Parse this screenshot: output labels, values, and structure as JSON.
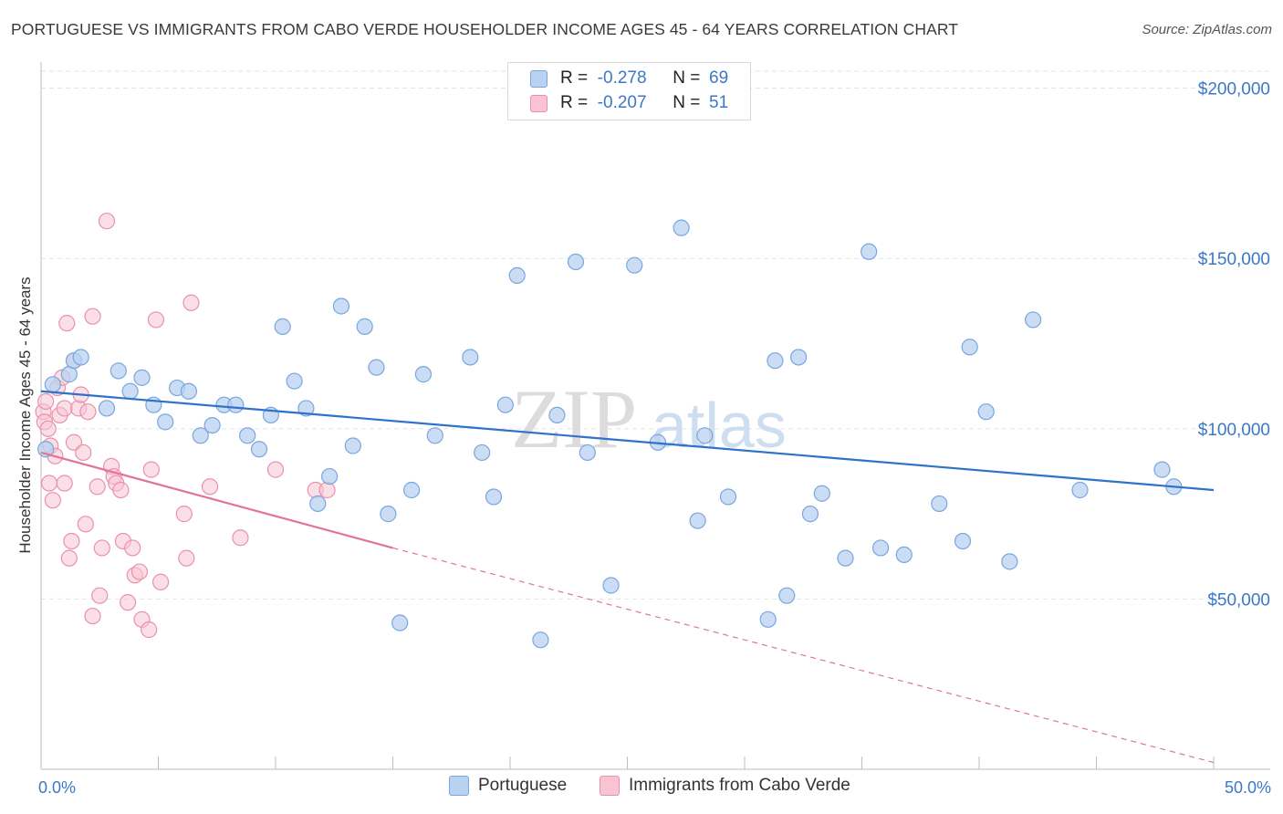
{
  "title": "PORTUGUESE VS IMMIGRANTS FROM CABO VERDE HOUSEHOLDER INCOME AGES 45 - 64 YEARS CORRELATION CHART",
  "source": "Source: ZipAtlas.com",
  "watermark": {
    "zip": "ZIP",
    "atlas": "atlas"
  },
  "legend": {
    "r_label": "R =",
    "n_label": "N =",
    "series": [
      {
        "r": "-0.278",
        "n": "69"
      },
      {
        "r": "-0.207",
        "n": "51"
      }
    ]
  },
  "bottom_legend": [
    "Portuguese",
    "Immigrants from Cabo Verde"
  ],
  "colors": {
    "blue_fill": "#b8d2f2",
    "blue_stroke": "#7aa6dd",
    "blue_line": "#2f72c9",
    "pink_fill": "#f8c4d4",
    "pink_stroke": "#ea90ad",
    "pink_line": "#e2739b",
    "axis_text": "#3b78c8"
  },
  "chart_data": {
    "type": "scatter",
    "xlabel": "",
    "ylabel": "Householder Income Ages 45 - 64 years",
    "xlim": [
      0,
      50
    ],
    "ylim": [
      0,
      205000
    ],
    "x_tick_labels": [
      "0.0%",
      "50.0%"
    ],
    "y_ticks": [
      50000,
      100000,
      150000,
      200000
    ],
    "y_tick_labels": [
      "$50,000",
      "$100,000",
      "$150,000",
      "$200,000"
    ],
    "grid": "horizontal dashed",
    "series": [
      {
        "name": "Portuguese",
        "r": -0.278,
        "n": 69,
        "trend": {
          "x": [
            0,
            50
          ],
          "y": [
            111000,
            82000
          ],
          "style": "solid"
        },
        "points": [
          [
            0.2,
            94000
          ],
          [
            1.2,
            116000
          ],
          [
            1.4,
            120000
          ],
          [
            1.7,
            121000
          ],
          [
            2.8,
            106000
          ],
          [
            3.3,
            117000
          ],
          [
            3.8,
            111000
          ],
          [
            4.3,
            115000
          ],
          [
            4.8,
            107000
          ],
          [
            5.3,
            102000
          ],
          [
            5.8,
            112000
          ],
          [
            6.3,
            111000
          ],
          [
            6.8,
            98000
          ],
          [
            7.3,
            101000
          ],
          [
            7.8,
            107000
          ],
          [
            8.3,
            107000
          ],
          [
            8.8,
            98000
          ],
          [
            9.3,
            94000
          ],
          [
            9.8,
            104000
          ],
          [
            10.3,
            130000
          ],
          [
            10.8,
            114000
          ],
          [
            11.3,
            106000
          ],
          [
            11.8,
            78000
          ],
          [
            12.3,
            86000
          ],
          [
            12.8,
            136000
          ],
          [
            13.3,
            95000
          ],
          [
            13.8,
            130000
          ],
          [
            14.3,
            118000
          ],
          [
            14.8,
            75000
          ],
          [
            15.3,
            43000
          ],
          [
            15.8,
            82000
          ],
          [
            16.3,
            116000
          ],
          [
            16.8,
            98000
          ],
          [
            18.3,
            121000
          ],
          [
            18.8,
            93000
          ],
          [
            19.3,
            80000
          ],
          [
            19.8,
            107000
          ],
          [
            20.3,
            145000
          ],
          [
            21.3,
            38000
          ],
          [
            22.0,
            104000
          ],
          [
            22.8,
            149000
          ],
          [
            23.3,
            93000
          ],
          [
            24.3,
            54000
          ],
          [
            25.3,
            148000
          ],
          [
            26.3,
            96000
          ],
          [
            27.3,
            159000
          ],
          [
            28.0,
            73000
          ],
          [
            28.3,
            98000
          ],
          [
            29.3,
            80000
          ],
          [
            31.0,
            44000
          ],
          [
            31.3,
            120000
          ],
          [
            31.8,
            51000
          ],
          [
            32.3,
            121000
          ],
          [
            32.8,
            75000
          ],
          [
            33.3,
            81000
          ],
          [
            34.3,
            62000
          ],
          [
            35.3,
            152000
          ],
          [
            35.8,
            65000
          ],
          [
            36.8,
            63000
          ],
          [
            38.3,
            78000
          ],
          [
            39.3,
            67000
          ],
          [
            39.6,
            124000
          ],
          [
            40.3,
            105000
          ],
          [
            41.3,
            61000
          ],
          [
            42.3,
            132000
          ],
          [
            44.3,
            82000
          ],
          [
            47.8,
            88000
          ],
          [
            48.3,
            83000
          ],
          [
            0.5,
            113000
          ]
        ]
      },
      {
        "name": "Immigrants from Cabo Verde",
        "r": -0.207,
        "n": 51,
        "trend": {
          "x": [
            0,
            15
          ],
          "y": [
            93000,
            65000
          ],
          "style": "solid"
        },
        "trend_ext": {
          "x": [
            15,
            50
          ],
          "y": [
            65000,
            2000
          ],
          "style": "dashed"
        },
        "points": [
          [
            0.1,
            105000
          ],
          [
            0.15,
            102000
          ],
          [
            0.2,
            108000
          ],
          [
            0.3,
            100000
          ],
          [
            0.35,
            84000
          ],
          [
            0.4,
            95000
          ],
          [
            0.5,
            79000
          ],
          [
            0.6,
            92000
          ],
          [
            0.7,
            112000
          ],
          [
            0.8,
            104000
          ],
          [
            0.9,
            115000
          ],
          [
            1.0,
            106000
          ],
          [
            1.0,
            84000
          ],
          [
            1.1,
            131000
          ],
          [
            1.2,
            62000
          ],
          [
            1.3,
            67000
          ],
          [
            1.4,
            120000
          ],
          [
            1.4,
            96000
          ],
          [
            1.6,
            106000
          ],
          [
            1.7,
            110000
          ],
          [
            1.8,
            93000
          ],
          [
            1.9,
            72000
          ],
          [
            2.0,
            105000
          ],
          [
            2.2,
            133000
          ],
          [
            2.2,
            45000
          ],
          [
            2.4,
            83000
          ],
          [
            2.5,
            51000
          ],
          [
            2.6,
            65000
          ],
          [
            2.8,
            161000
          ],
          [
            3.0,
            89000
          ],
          [
            3.1,
            86000
          ],
          [
            3.2,
            84000
          ],
          [
            3.4,
            82000
          ],
          [
            3.5,
            67000
          ],
          [
            3.7,
            49000
          ],
          [
            3.9,
            65000
          ],
          [
            4.0,
            57000
          ],
          [
            4.2,
            58000
          ],
          [
            4.3,
            44000
          ],
          [
            4.6,
            41000
          ],
          [
            4.7,
            88000
          ],
          [
            4.9,
            132000
          ],
          [
            5.1,
            55000
          ],
          [
            6.1,
            75000
          ],
          [
            6.2,
            62000
          ],
          [
            6.4,
            137000
          ],
          [
            7.2,
            83000
          ],
          [
            8.5,
            68000
          ],
          [
            10.0,
            88000
          ],
          [
            11.7,
            82000
          ],
          [
            12.2,
            82000
          ]
        ]
      }
    ]
  }
}
